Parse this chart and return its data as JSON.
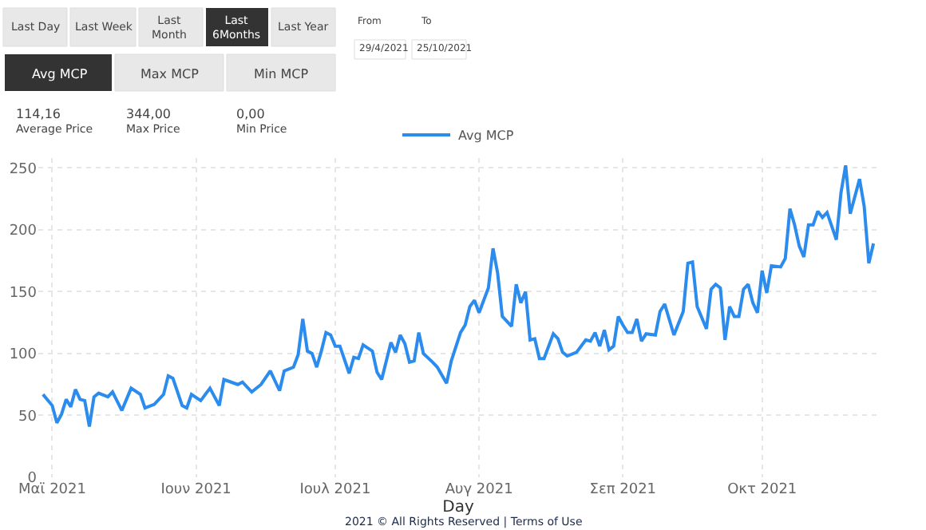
{
  "chart_data": {
    "type": "line",
    "xlabel": "Day",
    "annotations": [
      "Last Day",
      "Last Week",
      "Last\nMonth",
      "Last\n6Months",
      "Last Year",
      "Avg MCP",
      "Max MCP",
      "Min MCP",
      "From",
      "To",
      "29/4/2021",
      "25/10/2021",
      "114,16",
      "Average Price",
      "344,00",
      "Max Price",
      "0,00",
      "Min Price",
      "2021 © All Rights Reserved | Terms of Use"
    ],
    "xlim": [
      "2021-04-28",
      "2021-10-26"
    ],
    "xticks": [
      {
        "value": "2021-05-01",
        "label": "Μαϊ 2021"
      },
      {
        "value": "2021-06-01",
        "label": "Ιουν 2021"
      },
      {
        "value": "2021-07-01",
        "label": "Ιουλ 2021"
      },
      {
        "value": "2021-08-01",
        "label": "Αυγ 2021"
      },
      {
        "value": "2021-09-01",
        "label": "Σεπ 2021"
      },
      {
        "value": "2021-10-01",
        "label": "Οκτ 2021"
      }
    ],
    "ylim": [
      0,
      258
    ],
    "yticks": [
      0,
      50,
      100,
      150,
      200,
      250
    ],
    "grid": true,
    "legend": "top",
    "line_style": "solid",
    "x": [
      "2021-04-29",
      "2021-05-01",
      "2021-05-02",
      "2021-05-03",
      "2021-05-04",
      "2021-05-05",
      "2021-05-06",
      "2021-05-07",
      "2021-05-08",
      "2021-05-09",
      "2021-05-10",
      "2021-05-11",
      "2021-05-13",
      "2021-05-14",
      "2021-05-16",
      "2021-05-18",
      "2021-05-20",
      "2021-05-21",
      "2021-05-23",
      "2021-05-25",
      "2021-05-26",
      "2021-05-27",
      "2021-05-29",
      "2021-05-30",
      "2021-05-31",
      "2021-06-02",
      "2021-06-04",
      "2021-06-06",
      "2021-06-07",
      "2021-06-10",
      "2021-06-11",
      "2021-06-13",
      "2021-06-15",
      "2021-06-17",
      "2021-06-19",
      "2021-06-20",
      "2021-06-22",
      "2021-06-23",
      "2021-06-24",
      "2021-06-25",
      "2021-06-26",
      "2021-06-27",
      "2021-06-28",
      "2021-06-29",
      "2021-06-30",
      "2021-07-01",
      "2021-07-02",
      "2021-07-04",
      "2021-07-05",
      "2021-07-06",
      "2021-07-07",
      "2021-07-09",
      "2021-07-10",
      "2021-07-11",
      "2021-07-13",
      "2021-07-14",
      "2021-07-15",
      "2021-07-16",
      "2021-07-17",
      "2021-07-18",
      "2021-07-19",
      "2021-07-20",
      "2021-07-22",
      "2021-07-23",
      "2021-07-25",
      "2021-07-26",
      "2021-07-28",
      "2021-07-29",
      "2021-07-30",
      "2021-07-31",
      "2021-08-01",
      "2021-08-03",
      "2021-08-04",
      "2021-08-05",
      "2021-08-06",
      "2021-08-08",
      "2021-08-09",
      "2021-08-10",
      "2021-08-11",
      "2021-08-12",
      "2021-08-13",
      "2021-08-14",
      "2021-08-15",
      "2021-08-17",
      "2021-08-18",
      "2021-08-19",
      "2021-08-20",
      "2021-08-22",
      "2021-08-24",
      "2021-08-25",
      "2021-08-26",
      "2021-08-27",
      "2021-08-28",
      "2021-08-29",
      "2021-08-30",
      "2021-08-31",
      "2021-09-01",
      "2021-09-02",
      "2021-09-03",
      "2021-09-04",
      "2021-09-05",
      "2021-09-06",
      "2021-09-08",
      "2021-09-09",
      "2021-09-10",
      "2021-09-12",
      "2021-09-14",
      "2021-09-15",
      "2021-09-16",
      "2021-09-17",
      "2021-09-19",
      "2021-09-20",
      "2021-09-21",
      "2021-09-22",
      "2021-09-23",
      "2021-09-24",
      "2021-09-25",
      "2021-09-26",
      "2021-09-27",
      "2021-09-28",
      "2021-09-29",
      "2021-09-30",
      "2021-10-01",
      "2021-10-02",
      "2021-10-03",
      "2021-10-05",
      "2021-10-06",
      "2021-10-07",
      "2021-10-08",
      "2021-10-09",
      "2021-10-10",
      "2021-10-11",
      "2021-10-12",
      "2021-10-13",
      "2021-10-14",
      "2021-10-15",
      "2021-10-17",
      "2021-10-18",
      "2021-10-19",
      "2021-10-20",
      "2021-10-22",
      "2021-10-23",
      "2021-10-24",
      "2021-10-25"
    ],
    "series": [
      {
        "name": "Avg MCP",
        "color": "#2b8cee",
        "values": [
          67,
          58,
          44,
          51,
          63,
          57,
          71,
          63,
          62,
          41,
          65,
          68,
          65,
          69,
          54,
          72,
          67,
          56,
          59,
          67,
          82,
          80,
          58,
          56,
          67,
          62,
          72,
          58,
          79,
          75,
          77,
          69,
          75,
          86,
          70,
          86,
          89,
          99,
          128,
          102,
          100,
          89,
          102,
          117,
          115,
          106,
          106,
          84,
          97,
          96,
          107,
          102,
          85,
          79,
          109,
          101,
          115,
          108,
          93,
          94,
          117,
          100,
          93,
          89,
          76,
          94,
          117,
          123,
          138,
          143,
          133,
          153,
          185,
          165,
          130,
          122,
          156,
          141,
          150,
          111,
          112,
          96,
          96,
          116,
          112,
          101,
          98,
          101,
          111,
          110,
          117,
          106,
          119,
          103,
          106,
          130,
          123,
          117,
          117,
          128,
          110,
          116,
          115,
          134,
          140,
          115,
          134,
          173,
          174,
          138,
          120,
          152,
          156,
          153,
          111,
          138,
          130,
          130,
          152,
          156,
          141,
          133,
          167,
          149,
          171,
          170,
          177,
          217,
          204,
          187,
          178,
          204,
          204,
          215,
          210,
          214,
          192,
          230,
          252,
          213,
          241,
          219,
          173,
          189
        ]
      }
    ]
  }
}
